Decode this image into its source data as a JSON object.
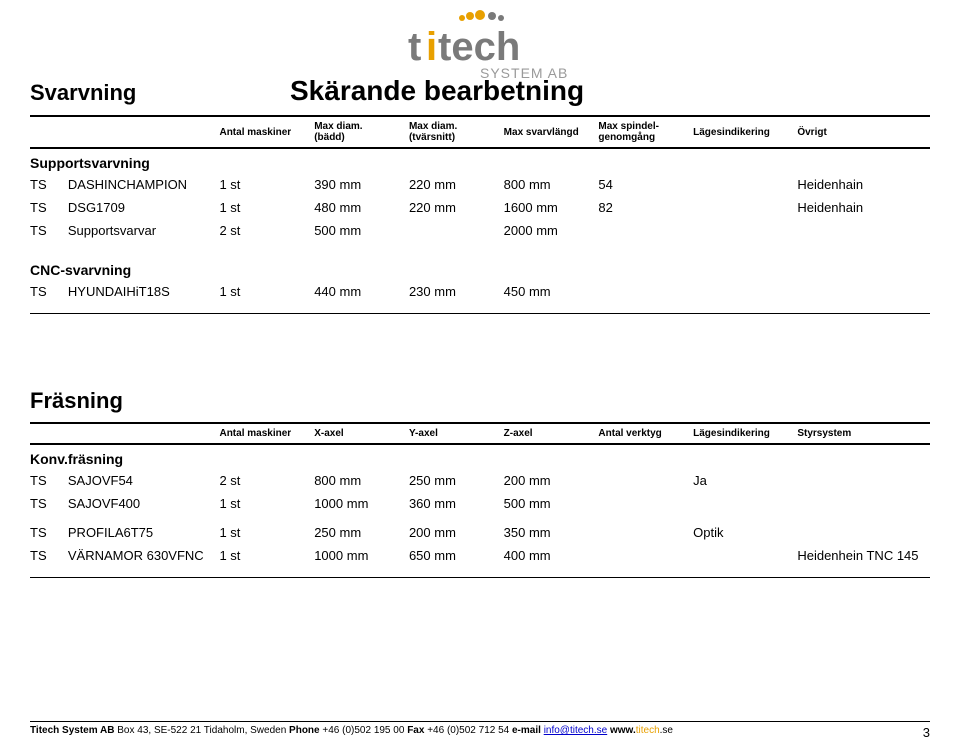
{
  "logo": {
    "text_top": "titech",
    "text_bottom": "SYSTEM AB",
    "top_color": "#7a7a7a",
    "dot_colors": [
      "#e8a000",
      "#e8a000",
      "#e8a000",
      "#7a7a7a",
      "#7a7a7a"
    ]
  },
  "section1": {
    "left_title": "Svarvning",
    "center_title": "Skärande bearbetning",
    "headers": [
      "Antal maskiner",
      "Max diam.\n(bädd)",
      "Max diam.\n(tvärsnitt)",
      "Max svarvlängd",
      "Max spindel-\ngenomgång",
      "Lägesindikering",
      "Övrigt"
    ],
    "groups": [
      {
        "label": "Supportsvarvning",
        "rows": [
          {
            "ts": "TS",
            "name": "DASHINCHAMPION",
            "a": "1 st",
            "b": "390 mm",
            "c": "220 mm",
            "d": "800 mm",
            "e": "54",
            "f": "",
            "g": "Heidenhain"
          },
          {
            "ts": "TS",
            "name": "DSG1709",
            "a": "1 st",
            "b": "480 mm",
            "c": "220 mm",
            "d": "1600 mm",
            "e": "82",
            "f": "",
            "g": "Heidenhain"
          },
          {
            "ts": "TS",
            "name": "Supportsvarvar",
            "a": "2 st",
            "b": "500 mm",
            "c": "",
            "d": "2000 mm",
            "e": "",
            "f": "",
            "g": ""
          }
        ]
      },
      {
        "label": "CNC-svarvning",
        "rows": [
          {
            "ts": "TS",
            "name": "HYUNDAIHiT18S",
            "a": "1 st",
            "b": "440 mm",
            "c": "230 mm",
            "d": "450 mm",
            "e": "",
            "f": "",
            "g": ""
          }
        ]
      }
    ]
  },
  "section2": {
    "title": "Fräsning",
    "headers": [
      "Antal maskiner",
      "X-axel",
      "Y-axel",
      "Z-axel",
      "Antal verktyg",
      "Lägesindikering",
      "Styrsystem"
    ],
    "groups": [
      {
        "label": "Konv.fräsning",
        "rows": [
          {
            "ts": "TS",
            "name": "SAJOVF54",
            "a": "2 st",
            "b": "800 mm",
            "c": "250 mm",
            "d": "200 mm",
            "e": "",
            "f": "Ja",
            "g": ""
          },
          {
            "ts": "TS",
            "name": "SAJOVF400",
            "a": "1 st",
            "b": "1000 mm",
            "c": "360 mm",
            "d": "500 mm",
            "e": "",
            "f": "",
            "g": ""
          },
          {
            "ts": "TS",
            "name": "PROFILA6T75",
            "a": "1 st",
            "b": "250 mm",
            "c": "200 mm",
            "d": "350 mm",
            "e": "",
            "f": "Optik",
            "g": ""
          },
          {
            "ts": "TS",
            "name": "VÄRNAMOR 630VFNC",
            "a": "1 st",
            "b": "1000 mm",
            "c": "650 mm",
            "d": "400 mm",
            "e": "",
            "f": "",
            "g": "Heidenhein  TNC 145"
          }
        ]
      }
    ]
  },
  "footer": {
    "company": "Titech System AB",
    "address": " Box 43, SE-522 21 Tidaholm, Sweden ",
    "phone_label": "Phone",
    "phone": " +46 (0)502 195 00 ",
    "fax_label": "Fax",
    "fax": " +46 (0)502 712 54 ",
    "email_label": "e-mail ",
    "email": "info@titech.se",
    "www_label": " www.",
    "www_orange": "titech",
    "www_suffix": ".se",
    "page": "3"
  }
}
